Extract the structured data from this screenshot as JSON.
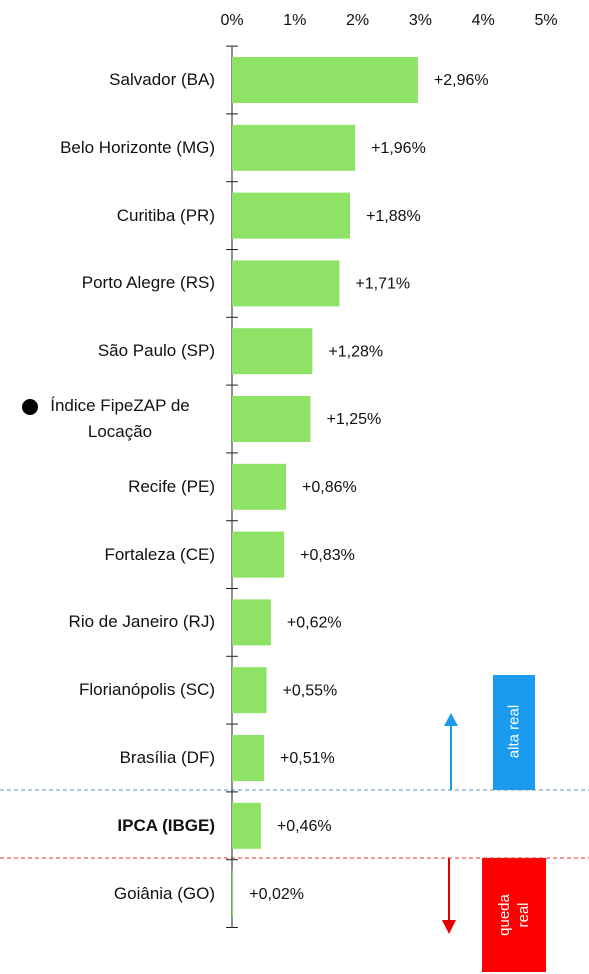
{
  "chart_data": {
    "type": "barh",
    "categories": [
      "Salvador (BA)",
      "Belo Horizonte (MG)",
      "Curitiba (PR)",
      "Porto Alegre (RS)",
      "São Paulo (SP)",
      "Índice FipeZAP de Locação",
      "Recife (PE)",
      "Fortaleza (CE)",
      "Rio de Janeiro (RJ)",
      "Florianópolis (SC)",
      "Brasília (DF)",
      "IPCA (IBGE)",
      "Goiânia (GO)"
    ],
    "values": [
      2.96,
      1.96,
      1.88,
      1.71,
      1.28,
      1.25,
      0.86,
      0.83,
      0.62,
      0.55,
      0.51,
      0.46,
      0.02
    ],
    "value_labels": [
      "+2,96%",
      "+1,96%",
      "+1,88%",
      "+1,71%",
      "+1,28%",
      "+1,25%",
      "+0,86%",
      "+0,83%",
      "+0,62%",
      "+0,55%",
      "+0,51%",
      "+0,46%",
      "+0,02%"
    ],
    "color": "#8ee366",
    "xlim": [
      0,
      5
    ],
    "xticks": [
      {
        "value": 0,
        "label": "0%"
      },
      {
        "value": 1,
        "label": "1%"
      },
      {
        "value": 2,
        "label": "2%"
      },
      {
        "value": 3,
        "label": "3%"
      },
      {
        "value": 4,
        "label": "4%"
      },
      {
        "value": 5,
        "label": "5%"
      }
    ],
    "marker_category": 5,
    "bold_category": 11,
    "annotations": [
      "alta real",
      "queda real"
    ]
  }
}
